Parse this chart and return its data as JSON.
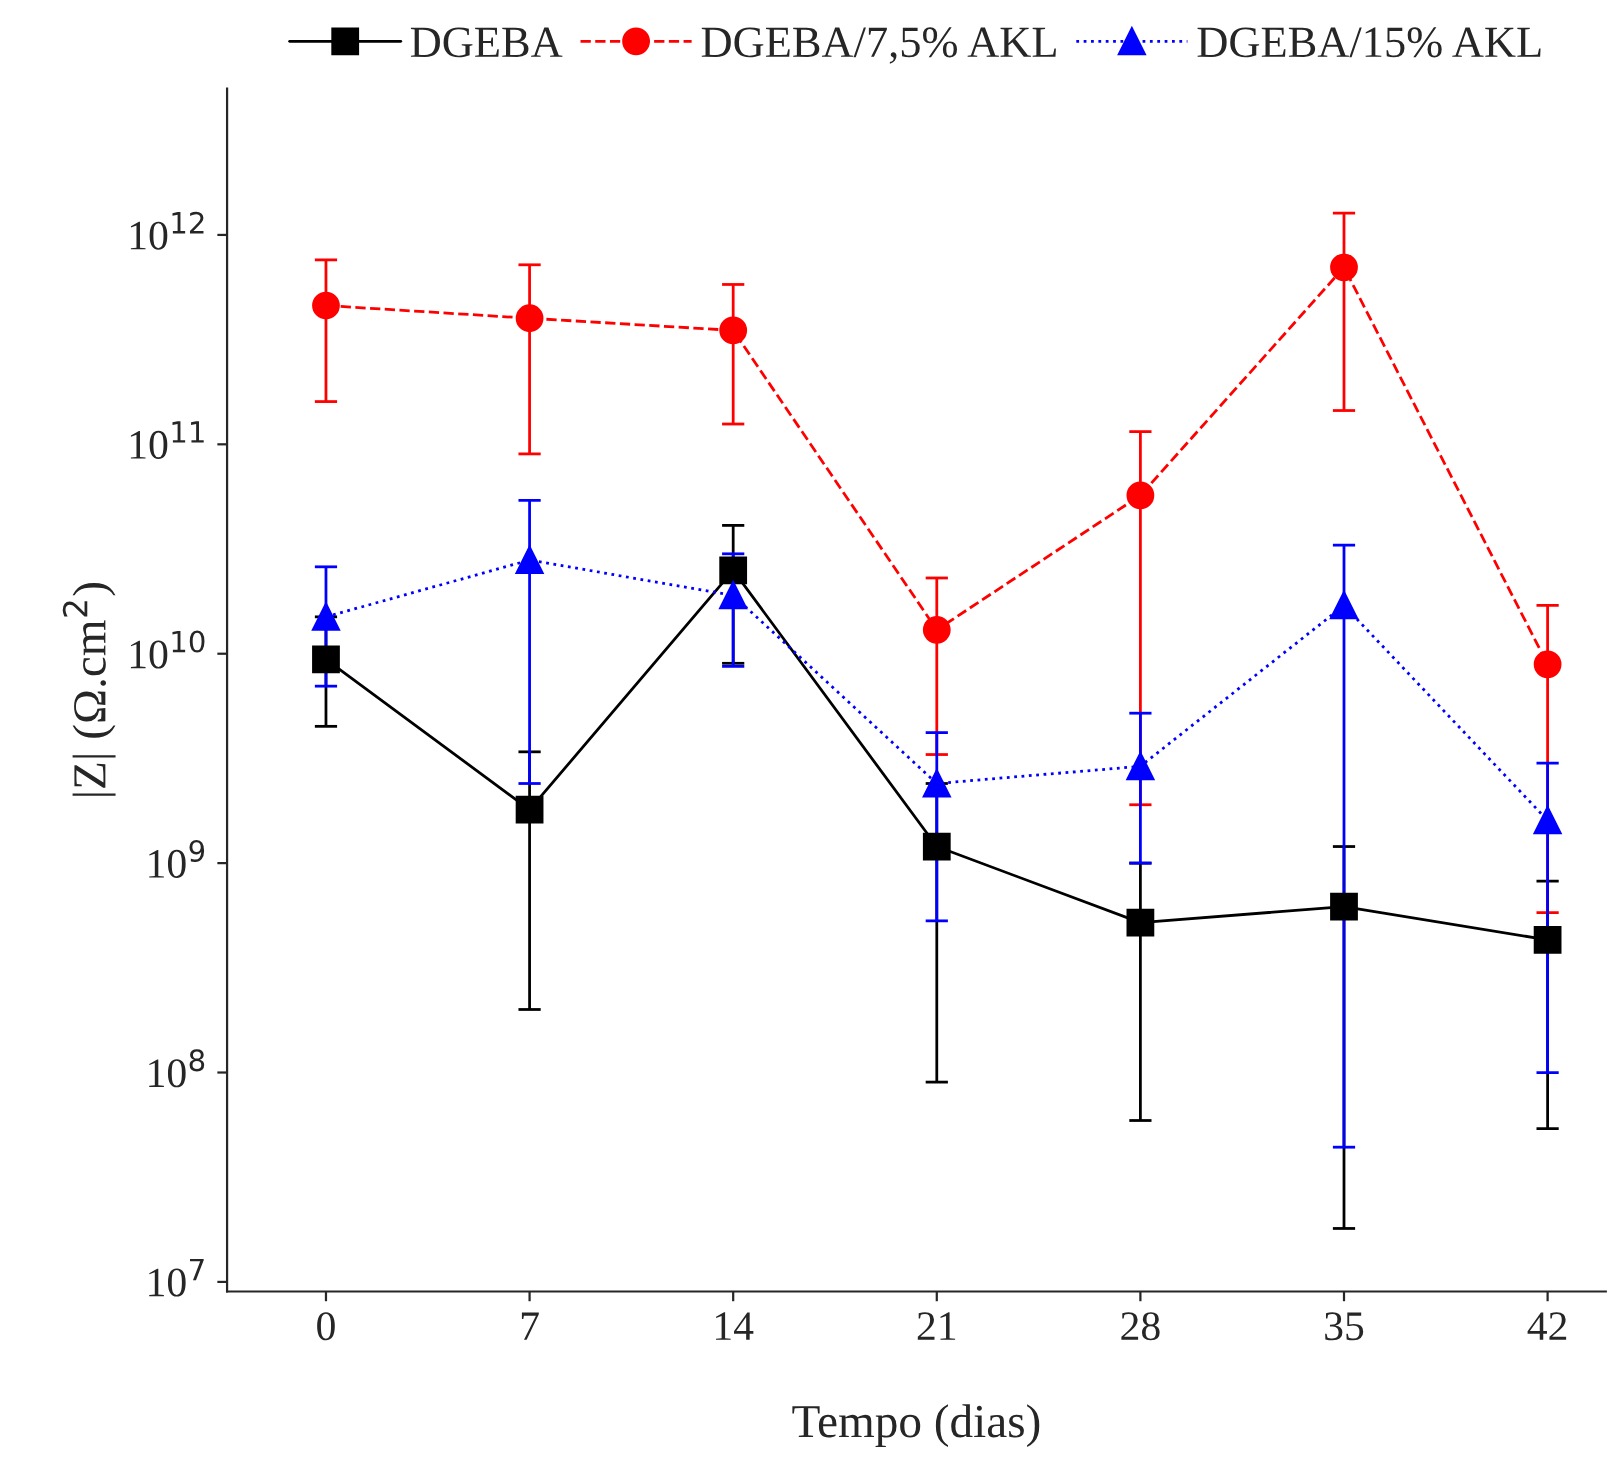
{
  "chart_data": {
    "type": "line",
    "xlabel": "Tempo (dias)",
    "ylabel": "|Z| (Ω.cm$^{2}$)",
    "log": "y",
    "legend": "top",
    "grid": false,
    "x": [
      0,
      7,
      14,
      21,
      28,
      35,
      42
    ],
    "xlim": [
      -3.4,
      44
    ],
    "xticks": [
      0,
      7,
      14,
      21,
      28,
      35,
      42
    ],
    "ylim": [
      9000000,
      5000000000000
    ],
    "yticks": [
      {
        "value": 10000000,
        "label": "10$^{7}$"
      },
      {
        "value": 100000000,
        "label": "10$^{8}$"
      },
      {
        "value": 1000000000,
        "label": "10$^{9}$"
      },
      {
        "value": 10000000000,
        "label": "10$^{10}$"
      },
      {
        "value": 100000000000,
        "label": "10$^{11}$"
      },
      {
        "value": 1000000000000,
        "label": "10$^{12}$"
      }
    ],
    "series": [
      {
        "name": "DGEBA",
        "color": "#000000",
        "marker": "square",
        "line_style": "solid",
        "values": [
          9400000000,
          1800000000,
          25000000000,
          1200000000,
          520000000,
          620000000,
          430000000
        ],
        "errors": [
          [
            4500000000,
            15000000000
          ],
          [
            200000000,
            3400000000
          ],
          [
            9000000000,
            41000000000
          ],
          [
            90000000,
            2400000000
          ],
          [
            59000000,
            1000000000
          ],
          [
            18000000,
            1200000000
          ],
          [
            54000000,
            820000000
          ]
        ]
      },
      {
        "name": "DGEBA/7,5% AKL",
        "color": "#ff0000",
        "marker": "circle",
        "line_style": "dashed",
        "values": [
          460000000000,
          400000000000,
          350000000000,
          13000000000,
          57000000000,
          700000000000,
          8900000000
        ],
        "errors": [
          [
            160000000000,
            760000000000
          ],
          [
            90000000000,
            720000000000
          ],
          [
            125000000000,
            580000000000
          ],
          [
            3300000000,
            23000000000
          ],
          [
            1900000000,
            115000000000
          ],
          [
            145000000000,
            1270000000000
          ],
          [
            580000000,
            17000000000
          ]
        ]
      },
      {
        "name": "DGEBA/15% AKL",
        "color": "#0000ff",
        "marker": "triangle",
        "line_style": "dotted",
        "values": [
          15000000000,
          28000000000,
          19000000000,
          2400000000,
          2900000000,
          17000000000,
          1600000000
        ],
        "errors": [
          [
            7000000000,
            26000000000
          ],
          [
            2400000000,
            54000000000
          ],
          [
            8700000000,
            30000000000
          ],
          [
            530000000,
            4200000000
          ],
          [
            1000000000,
            5200000000
          ],
          [
            44000000,
            33000000000
          ],
          [
            100000000,
            3000000000
          ]
        ]
      }
    ]
  }
}
